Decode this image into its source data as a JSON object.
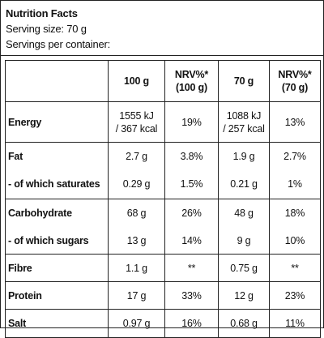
{
  "header": {
    "title": "Nutrition Facts",
    "serving_size": "Serving size: 70 g",
    "servings_per_container": "Servings per container:"
  },
  "table": {
    "columns": {
      "per_100g": "100 g",
      "nrv_100g_line1": "NRV%*",
      "nrv_100g_line2": "(100 g)",
      "per_70g": "70 g",
      "nrv_70g_line1": "NRV%*",
      "nrv_70g_line2": "(70 g)"
    },
    "rows": {
      "energy": {
        "label": "Energy",
        "per_100g_line1": "1555 kJ",
        "per_100g_line2": "/ 367 kcal",
        "nrv_100g": "19%",
        "per_70g_line1": "1088 kJ",
        "per_70g_line2": "/ 257 kcal",
        "nrv_70g": "13%"
      },
      "fat": {
        "label": "Fat",
        "per_100g": "2.7 g",
        "nrv_100g": "3.8%",
        "per_70g": "1.9 g",
        "nrv_70g": "2.7%"
      },
      "saturates": {
        "label": "- of which saturates",
        "per_100g": "0.29 g",
        "nrv_100g": "1.5%",
        "per_70g": "0.21 g",
        "nrv_70g": "1%"
      },
      "carbohydrate": {
        "label": "Carbohydrate",
        "per_100g": "68 g",
        "nrv_100g": "26%",
        "per_70g": "48 g",
        "nrv_70g": "18%"
      },
      "sugars": {
        "label": "- of which sugars",
        "per_100g": "13 g",
        "nrv_100g": "14%",
        "per_70g": "9 g",
        "nrv_70g": "10%"
      },
      "fibre": {
        "label": "Fibre",
        "per_100g": "1.1 g",
        "nrv_100g": "**",
        "per_70g": "0.75 g",
        "nrv_70g": "**"
      },
      "protein": {
        "label": "Protein",
        "per_100g": "17 g",
        "nrv_100g": "33%",
        "per_70g": "12 g",
        "nrv_70g": "23%"
      },
      "salt": {
        "label": "Salt",
        "per_100g": "0.97 g",
        "nrv_100g": "16%",
        "per_70g": "0.68 g",
        "nrv_70g": "11%"
      }
    }
  }
}
